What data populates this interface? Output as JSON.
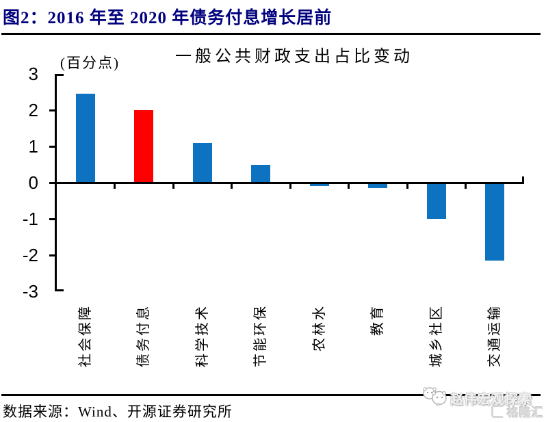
{
  "header": {
    "title": "图2：2016 年至 2020 年债务付息增长居前"
  },
  "chart_data": {
    "type": "bar",
    "title": "一般公共财政支出占比变动",
    "unit_label": "(百分点)",
    "categories": [
      "社会保障",
      "债务付息",
      "科学技术",
      "节能环保",
      "农林水",
      "教育",
      "城乡社区",
      "交通运输"
    ],
    "values": [
      2.45,
      2.0,
      1.1,
      0.5,
      -0.1,
      -0.15,
      -1.0,
      -2.15
    ],
    "bar_colors": [
      "#0d72bf",
      "#ff0000",
      "#0d72bf",
      "#0d72bf",
      "#0d72bf",
      "#0d72bf",
      "#0d72bf",
      "#0d72bf"
    ],
    "highlight_category": "债务付息",
    "ylim": [
      -3,
      3
    ],
    "yticks": [
      3,
      2,
      1,
      0,
      -1,
      -2,
      -3
    ],
    "grid": false,
    "legend": "none",
    "colors": {
      "bar_default": "#0d72bf",
      "bar_highlight": "#ff0000",
      "axis": "#000000",
      "title_navy": "#00007e"
    }
  },
  "footer": {
    "source": "数据来源：Wind、开源证券研究所",
    "watermark": "赵伟宏观探索",
    "logo_text": "格隆汇"
  }
}
